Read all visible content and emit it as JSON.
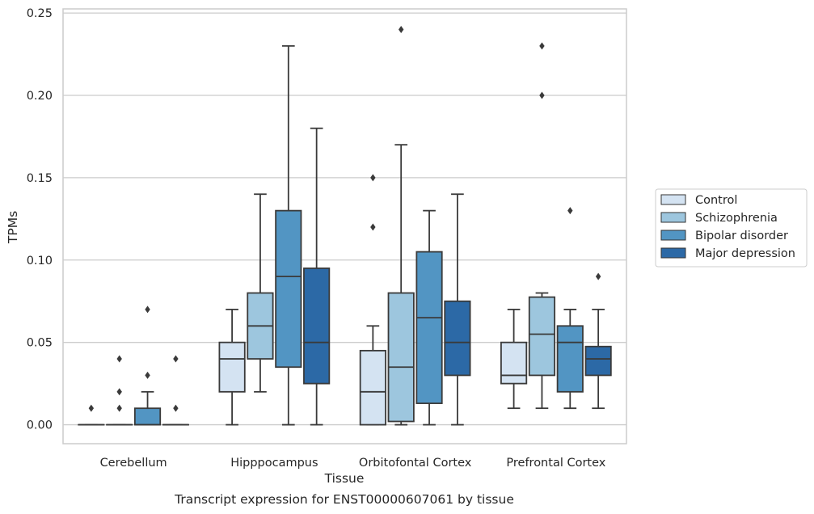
{
  "chart_data": {
    "type": "box",
    "xlabel": "Tissue",
    "ylabel": "TPMs",
    "caption": "Transcript expression for ENST00000607061 by tissue",
    "ylim": [
      -0.0115,
      0.2525
    ],
    "yticks": [
      0.0,
      0.05,
      0.1,
      0.15,
      0.2,
      0.25
    ],
    "ytick_labels": [
      "0.00",
      "0.05",
      "0.10",
      "0.15",
      "0.20",
      "0.25"
    ],
    "grid": "horizontal",
    "legend_position": "right",
    "categories": [
      "Cerebellum",
      "Hipppocampus",
      "Orbitofontal Cortex",
      "Prefrontal Cortex"
    ],
    "series": [
      {
        "name": "Control",
        "color": "#d4e3f2",
        "boxes": [
          {
            "whisker_low": 0.0,
            "q1": 0.0,
            "median": 0.0,
            "q3": 0.0,
            "whisker_high": 0.0,
            "outliers": [
              0.01
            ]
          },
          {
            "whisker_low": 0.0,
            "q1": 0.02,
            "median": 0.04,
            "q3": 0.05,
            "whisker_high": 0.07,
            "outliers": []
          },
          {
            "whisker_low": 0.0,
            "q1": 0.0,
            "median": 0.02,
            "q3": 0.045,
            "whisker_high": 0.06,
            "outliers": [
              0.12,
              0.15
            ]
          },
          {
            "whisker_low": 0.01,
            "q1": 0.025,
            "median": 0.03,
            "q3": 0.05,
            "whisker_high": 0.07,
            "outliers": []
          }
        ]
      },
      {
        "name": "Schizophrenia",
        "color": "#9dc6de",
        "boxes": [
          {
            "whisker_low": 0.0,
            "q1": 0.0,
            "median": 0.0,
            "q3": 0.0,
            "whisker_high": 0.0,
            "outliers": [
              0.01,
              0.02,
              0.04
            ]
          },
          {
            "whisker_low": 0.02,
            "q1": 0.04,
            "median": 0.06,
            "q3": 0.08,
            "whisker_high": 0.14,
            "outliers": []
          },
          {
            "whisker_low": 0.0,
            "q1": 0.002,
            "median": 0.035,
            "q3": 0.08,
            "whisker_high": 0.17,
            "outliers": [
              0.24
            ]
          },
          {
            "whisker_low": 0.01,
            "q1": 0.03,
            "median": 0.055,
            "q3": 0.0775,
            "whisker_high": 0.08,
            "outliers": [
              0.2,
              0.23
            ]
          }
        ]
      },
      {
        "name": "Bipolar disorder",
        "color": "#5295c3",
        "boxes": [
          {
            "whisker_low": 0.0,
            "q1": 0.0,
            "median": 0.0,
            "q3": 0.01,
            "whisker_high": 0.02,
            "outliers": [
              0.03,
              0.07
            ]
          },
          {
            "whisker_low": 0.0,
            "q1": 0.035,
            "median": 0.09,
            "q3": 0.13,
            "whisker_high": 0.23,
            "outliers": []
          },
          {
            "whisker_low": 0.0,
            "q1": 0.013,
            "median": 0.065,
            "q3": 0.105,
            "whisker_high": 0.13,
            "outliers": []
          },
          {
            "whisker_low": 0.01,
            "q1": 0.02,
            "median": 0.05,
            "q3": 0.06,
            "whisker_high": 0.07,
            "outliers": [
              0.13
            ]
          }
        ]
      },
      {
        "name": "Major depression",
        "color": "#2c69a6",
        "boxes": [
          {
            "whisker_low": 0.0,
            "q1": 0.0,
            "median": 0.0,
            "q3": 0.0,
            "whisker_high": 0.0,
            "outliers": [
              0.01,
              0.04
            ]
          },
          {
            "whisker_low": 0.0,
            "q1": 0.025,
            "median": 0.05,
            "q3": 0.095,
            "whisker_high": 0.18,
            "outliers": []
          },
          {
            "whisker_low": 0.0,
            "q1": 0.03,
            "median": 0.05,
            "q3": 0.075,
            "whisker_high": 0.14,
            "outliers": []
          },
          {
            "whisker_low": 0.01,
            "q1": 0.03,
            "median": 0.04,
            "q3": 0.0475,
            "whisker_high": 0.07,
            "outliers": [
              0.09
            ]
          }
        ]
      }
    ]
  }
}
